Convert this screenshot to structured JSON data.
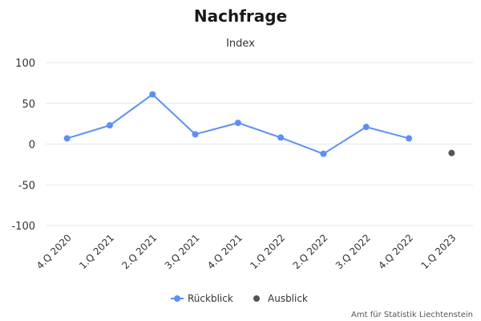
{
  "chart_data": {
    "type": "line",
    "title": "Nachfrage",
    "subtitle": "Index",
    "categories": [
      "4.Q 2020",
      "1.Q 2021",
      "2.Q 2021",
      "3.Q 2021",
      "4.Q 2021",
      "1.Q 2022",
      "2.Q 2022",
      "3.Q 2022",
      "4.Q 2022",
      "1.Q 2023"
    ],
    "y_ticks": [
      100,
      50,
      0,
      -50,
      -100
    ],
    "ylim": [
      -100,
      100
    ],
    "grid": true,
    "legend_position": "bottom-center",
    "series": [
      {
        "name": "Rückblick",
        "color": "#5b8ff9",
        "line": true,
        "values": [
          7,
          23,
          61,
          12,
          26,
          8,
          -12,
          21,
          7,
          null
        ]
      },
      {
        "name": "Ausblick",
        "color": "#555555",
        "line": false,
        "values": [
          null,
          null,
          null,
          null,
          null,
          null,
          null,
          null,
          null,
          -11
        ]
      }
    ],
    "credits": "Amt für Statistik Liechtenstein"
  }
}
